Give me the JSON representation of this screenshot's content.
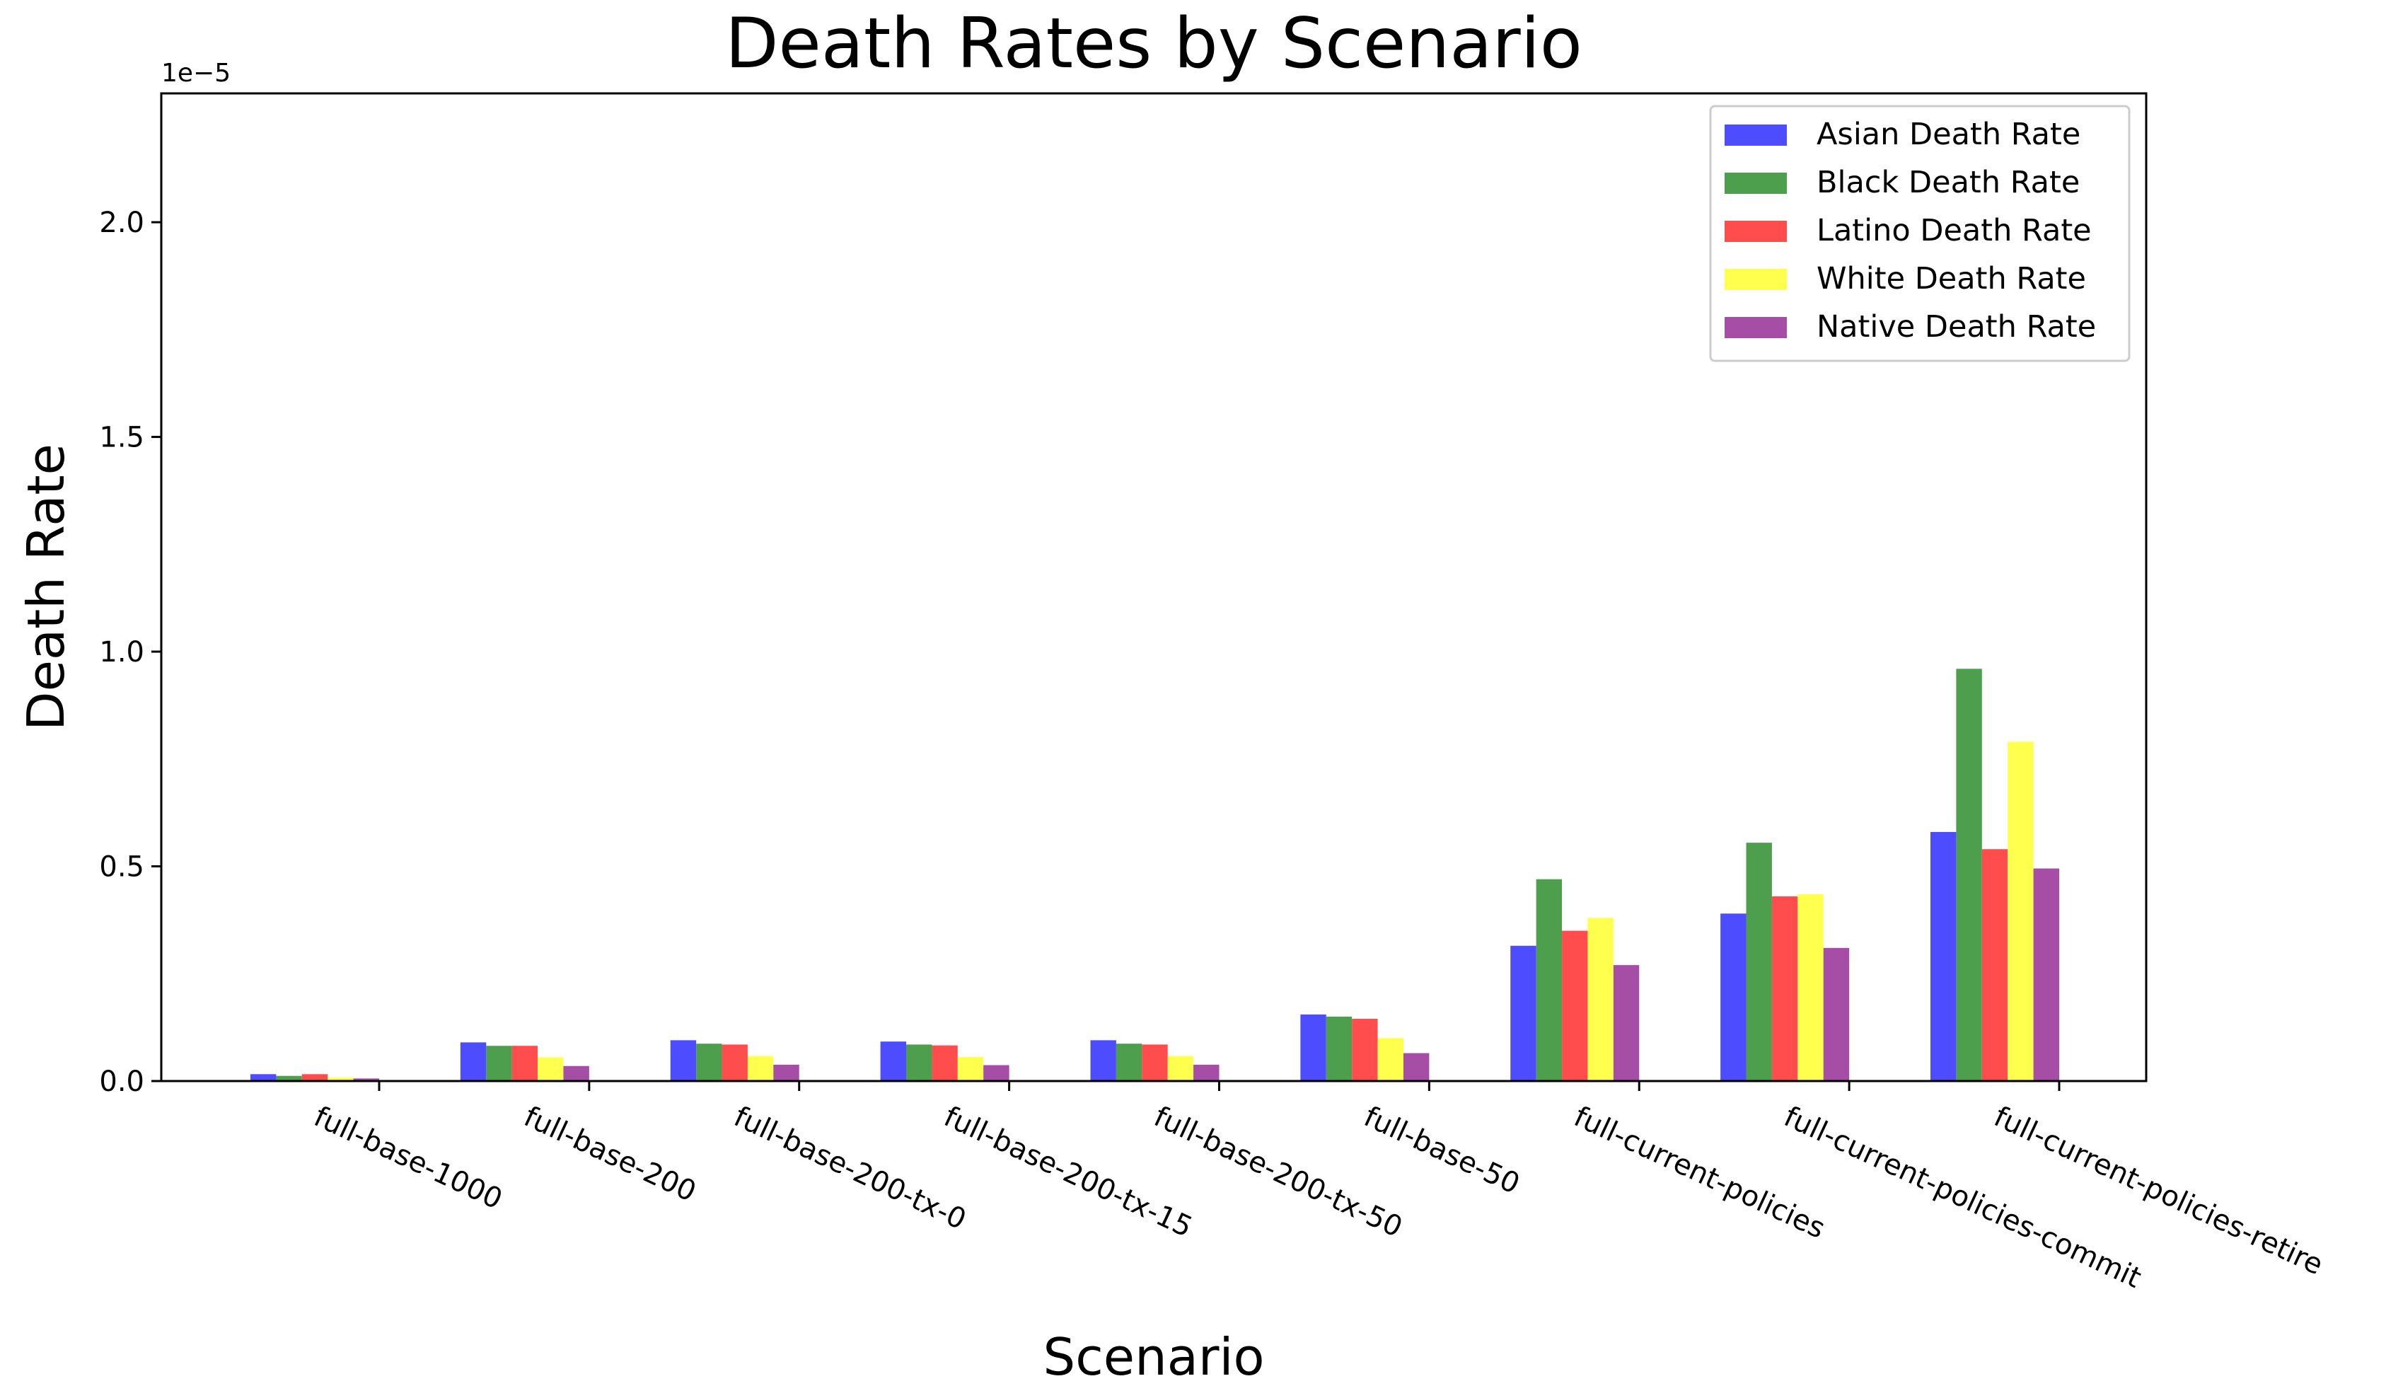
{
  "chart_data": {
    "type": "bar",
    "title": "Death Rates by Scenario",
    "xlabel": "Scenario",
    "ylabel": "Death Rate",
    "scale_label": "1e−5",
    "ylim": [
      0,
      2.3
    ],
    "yticks": [
      0.0,
      0.5,
      1.0,
      1.5,
      2.0
    ],
    "ytick_labels": [
      "0.0",
      "0.5",
      "1.0",
      "1.5",
      "2.0"
    ],
    "grid": false,
    "legend_position": "top-right",
    "categories": [
      "full-base-1000",
      "full-base-200",
      "full-base-200-tx-0",
      "full-base-200-tx-15",
      "full-base-200-tx-50",
      "full-base-50",
      "full-current-policies",
      "full-current-policies-commit",
      "full-current-policies-retire"
    ],
    "series": [
      {
        "name": "Asian Death Rate",
        "color": "#4d4dff",
        "values": [
          0.016,
          0.09,
          0.095,
          0.092,
          0.095,
          0.155,
          0.315,
          0.39,
          0.58
        ]
      },
      {
        "name": "Black Death Rate",
        "color": "#4d9f4d",
        "values": [
          0.012,
          0.082,
          0.087,
          0.085,
          0.087,
          0.15,
          0.47,
          0.555,
          0.96
        ]
      },
      {
        "name": "Latino Death Rate",
        "color": "#ff4d4d",
        "values": [
          0.016,
          0.082,
          0.085,
          0.083,
          0.085,
          0.145,
          0.35,
          0.43,
          0.54
        ]
      },
      {
        "name": "White Death Rate",
        "color": "#ffff4d",
        "values": [
          0.008,
          0.055,
          0.058,
          0.056,
          0.058,
          0.1,
          0.38,
          0.435,
          0.79
        ]
      },
      {
        "name": "Native Death Rate",
        "color": "#a64da6",
        "values": [
          0.006,
          0.035,
          0.038,
          0.037,
          0.038,
          0.065,
          0.27,
          0.31,
          0.495
        ]
      }
    ]
  }
}
